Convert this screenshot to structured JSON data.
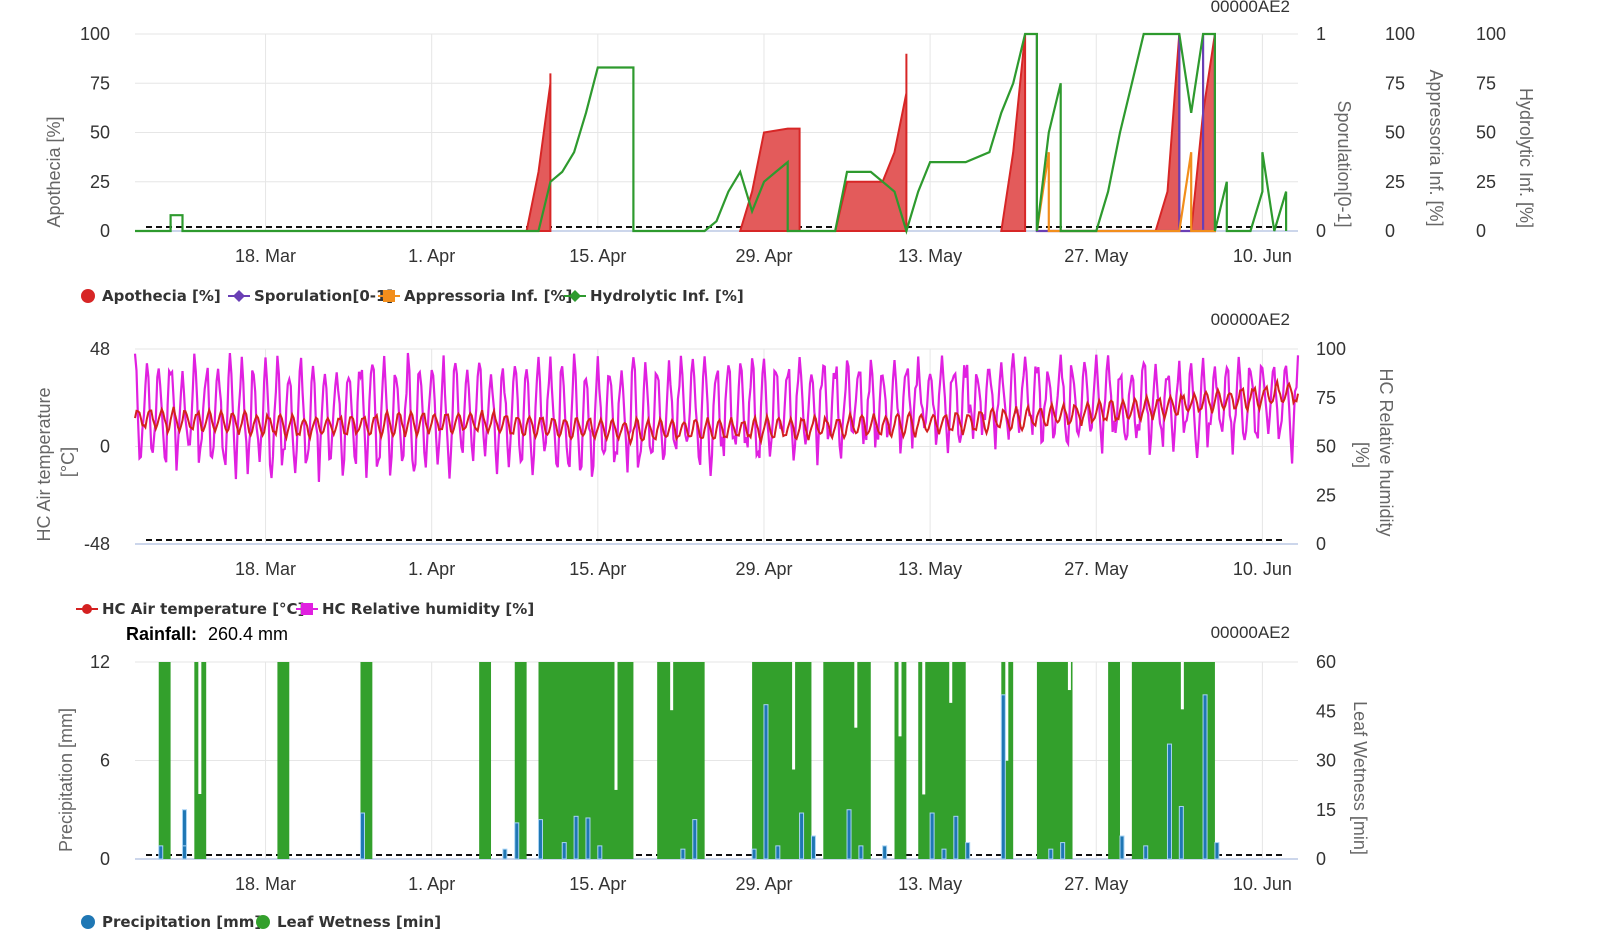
{
  "colors": {
    "apothecia": "#d72626",
    "apothecia_fill": "#e35b5b",
    "sporulation": "#6a3fb5",
    "appressoria": "#f28e1c",
    "hydrolytic": "#2e9a2e",
    "temperature": "#d42020",
    "humidity": "#e020e0",
    "precipitation": "#1f77b4",
    "leaf_wetness": "#33a02c",
    "gridline": "#e6e6e6",
    "axis_line": "#ccd6eb"
  },
  "x_axis": {
    "start": "2024-03-07",
    "end": "2024-06-13",
    "ticks": [
      {
        "date": "2024-03-18",
        "label": "18. Mar"
      },
      {
        "date": "2024-04-01",
        "label": "1. Apr"
      },
      {
        "date": "2024-04-15",
        "label": "15. Apr"
      },
      {
        "date": "2024-04-29",
        "label": "29. Apr"
      },
      {
        "date": "2024-05-13",
        "label": "13. May"
      },
      {
        "date": "2024-05-27",
        "label": "27. May"
      },
      {
        "date": "2024-06-10",
        "label": "10. Jun"
      }
    ]
  },
  "chart_data": [
    {
      "type": "area",
      "station_id": "00000AE2",
      "y_axes": [
        {
          "title": "Apothecia [%]",
          "ticks": [
            "0",
            "25",
            "50",
            "75",
            "100"
          ],
          "range": [
            0,
            100
          ]
        },
        {
          "title": "Sporulation[0-1]",
          "ticks": [
            "0",
            "1"
          ],
          "range": [
            0,
            1
          ]
        },
        {
          "title": "Appressoria Inf. [%]",
          "ticks": [
            "0",
            "25",
            "50",
            "75",
            "100"
          ],
          "range": [
            0,
            100
          ]
        },
        {
          "title": "Hydrolytic Inf. [%]",
          "ticks": [
            "0",
            "25",
            "50",
            "75",
            "100"
          ],
          "range": [
            0,
            100
          ]
        }
      ],
      "legend": [
        {
          "label": "Apothecia [%]",
          "marker": "circle",
          "color_key": "apothecia"
        },
        {
          "label": "Sporulation[0-1]",
          "marker": "diamond-line",
          "color_key": "sporulation"
        },
        {
          "label": "Appressoria Inf. [%]",
          "marker": "square-line",
          "color_key": "appressoria"
        },
        {
          "label": "Hydrolytic Inf. [%]",
          "marker": "triangle-line",
          "color_key": "hydrolytic"
        }
      ],
      "series": [
        {
          "name": "Apothecia [%]",
          "axis": 0,
          "style": "area",
          "color_key": "apothecia",
          "points": [
            [
              "2024-04-09",
              0
            ],
            [
              "2024-04-10",
              30
            ],
            [
              "2024-04-11",
              75
            ],
            [
              "2024-04-11",
              80
            ],
            [
              "2024-04-11",
              0
            ],
            [
              "2024-04-27",
              0
            ],
            [
              "2024-04-28",
              20
            ],
            [
              "2024-04-29",
              50
            ],
            [
              "2024-05-01",
              52
            ],
            [
              "2024-05-02",
              52
            ],
            [
              "2024-05-02",
              0
            ],
            [
              "2024-05-05",
              0
            ],
            [
              "2024-05-06",
              25
            ],
            [
              "2024-05-09",
              25
            ],
            [
              "2024-05-10",
              40
            ],
            [
              "2024-05-11",
              70
            ],
            [
              "2024-05-11",
              90
            ],
            [
              "2024-05-11",
              0
            ],
            [
              "2024-05-19",
              0
            ],
            [
              "2024-05-20",
              40
            ],
            [
              "2024-05-21",
              100
            ],
            [
              "2024-05-21",
              0
            ],
            [
              "2024-06-01",
              0
            ],
            [
              "2024-06-02",
              20
            ],
            [
              "2024-06-03",
              100
            ],
            [
              "2024-06-03",
              0
            ],
            [
              "2024-06-04",
              0
            ],
            [
              "2024-06-05",
              60
            ],
            [
              "2024-06-06",
              100
            ],
            [
              "2024-06-06",
              0
            ]
          ]
        },
        {
          "name": "Sporulation[0-1]",
          "axis": 1,
          "style": "line",
          "color_key": "sporulation",
          "points": [
            [
              "2024-05-22",
              0
            ],
            [
              "2024-05-22",
              1
            ],
            [
              "2024-05-22",
              0
            ],
            [
              "2024-06-03",
              0
            ],
            [
              "2024-06-03",
              1
            ],
            [
              "2024-06-03",
              0
            ],
            [
              "2024-06-05",
              0
            ],
            [
              "2024-06-05",
              1
            ],
            [
              "2024-06-05",
              0
            ],
            [
              "2024-06-06",
              0
            ],
            [
              "2024-06-06",
              1
            ],
            [
              "2024-06-06",
              0
            ]
          ]
        },
        {
          "name": "Appressoria Inf. [%]",
          "axis": 2,
          "style": "line",
          "color_key": "appressoria",
          "points": [
            [
              "2024-05-22",
              0
            ],
            [
              "2024-05-23",
              40
            ],
            [
              "2024-05-23",
              0
            ],
            [
              "2024-06-03",
              0
            ],
            [
              "2024-06-04",
              40
            ],
            [
              "2024-06-04",
              0
            ],
            [
              "2024-06-06",
              0
            ],
            [
              "2024-06-06",
              20
            ],
            [
              "2024-06-06",
              0
            ]
          ]
        },
        {
          "name": "Hydrolytic Inf. [%]",
          "axis": 3,
          "style": "line",
          "color_key": "hydrolytic",
          "points": [
            [
              "2024-03-07",
              0
            ],
            [
              "2024-03-10",
              0
            ],
            [
              "2024-03-10",
              8
            ],
            [
              "2024-03-11",
              8
            ],
            [
              "2024-03-11",
              0
            ],
            [
              "2024-04-10",
              0
            ],
            [
              "2024-04-11",
              25
            ],
            [
              "2024-04-12",
              30
            ],
            [
              "2024-04-13",
              40
            ],
            [
              "2024-04-14",
              60
            ],
            [
              "2024-04-15",
              83
            ],
            [
              "2024-04-18",
              83
            ],
            [
              "2024-04-18",
              0
            ],
            [
              "2024-04-24",
              0
            ],
            [
              "2024-04-25",
              5
            ],
            [
              "2024-04-26",
              20
            ],
            [
              "2024-04-27",
              30
            ],
            [
              "2024-04-28",
              10
            ],
            [
              "2024-04-29",
              25
            ],
            [
              "2024-04-30",
              30
            ],
            [
              "2024-05-01",
              35
            ],
            [
              "2024-05-01",
              0
            ],
            [
              "2024-05-05",
              0
            ],
            [
              "2024-05-06",
              30
            ],
            [
              "2024-05-08",
              30
            ],
            [
              "2024-05-10",
              20
            ],
            [
              "2024-05-11",
              0
            ],
            [
              "2024-05-12",
              20
            ],
            [
              "2024-05-13",
              35
            ],
            [
              "2024-05-16",
              35
            ],
            [
              "2024-05-18",
              40
            ],
            [
              "2024-05-19",
              60
            ],
            [
              "2024-05-20",
              75
            ],
            [
              "2024-05-21",
              100
            ],
            [
              "2024-05-22",
              100
            ],
            [
              "2024-05-22",
              0
            ],
            [
              "2024-05-23",
              50
            ],
            [
              "2024-05-24",
              75
            ],
            [
              "2024-05-24",
              0
            ],
            [
              "2024-05-27",
              0
            ],
            [
              "2024-05-28",
              20
            ],
            [
              "2024-05-29",
              50
            ],
            [
              "2024-05-30",
              75
            ],
            [
              "2024-05-31",
              100
            ],
            [
              "2024-06-03",
              100
            ],
            [
              "2024-06-04",
              60
            ],
            [
              "2024-06-05",
              100
            ],
            [
              "2024-06-06",
              100
            ],
            [
              "2024-06-06",
              0
            ],
            [
              "2024-06-07",
              25
            ],
            [
              "2024-06-07",
              0
            ],
            [
              "2024-06-09",
              0
            ],
            [
              "2024-06-10",
              20
            ],
            [
              "2024-06-10",
              40
            ],
            [
              "2024-06-11",
              0
            ],
            [
              "2024-06-12",
              20
            ],
            [
              "2024-06-12",
              0
            ]
          ]
        }
      ]
    },
    {
      "type": "line",
      "station_id": "00000AE2",
      "y_axes": [
        {
          "title": "HC Air temperature [°C]",
          "ticks": [
            "-48",
            "0",
            "48"
          ],
          "range": [
            -48,
            48
          ]
        },
        {
          "title": "HC Relative humidity [%]",
          "ticks": [
            "0",
            "25",
            "50",
            "75",
            "100"
          ],
          "range": [
            0,
            100
          ]
        }
      ],
      "legend": [
        {
          "label": "HC Air temperature [°C]",
          "marker": "circle-line",
          "color_key": "temperature"
        },
        {
          "label": "HC Relative humidity [%]",
          "marker": "square-line",
          "color_key": "humidity"
        }
      ],
      "series": [
        {
          "name": "HC Air temperature [°C]",
          "axis": 0,
          "color_key": "temperature",
          "baseline": [
            [
              "2024-03-07",
              14
            ],
            [
              "2024-03-21",
              10
            ],
            [
              "2024-04-04",
              12
            ],
            [
              "2024-04-18",
              8
            ],
            [
              "2024-05-02",
              9
            ],
            [
              "2024-05-16",
              12
            ],
            [
              "2024-05-30",
              18
            ],
            [
              "2024-06-12",
              26
            ]
          ],
          "daily_swing": 6
        },
        {
          "name": "HC Relative humidity [%]",
          "axis": 1,
          "color_key": "humidity",
          "daily_min": [
            [
              "2024-03-07",
              45
            ],
            [
              "2024-03-21",
              40
            ],
            [
              "2024-04-04",
              45
            ],
            [
              "2024-04-18",
              40
            ],
            [
              "2024-05-02",
              50
            ],
            [
              "2024-05-16",
              58
            ],
            [
              "2024-05-30",
              52
            ],
            [
              "2024-06-12",
              52
            ]
          ],
          "daily_max": 98
        }
      ]
    },
    {
      "type": "bar",
      "station_id": "00000AE2",
      "title": "Rainfall:",
      "subtitle": "260.4 mm",
      "y_axes": [
        {
          "title": "Precipitation [mm]",
          "ticks": [
            "0",
            "6",
            "12"
          ],
          "range": [
            0,
            12
          ]
        },
        {
          "title": "Leaf Wetness [min]",
          "ticks": [
            "0",
            "15",
            "30",
            "45",
            "60"
          ],
          "range": [
            0,
            60
          ]
        }
      ],
      "legend": [
        {
          "label": "Precipitation [mm]",
          "marker": "circle",
          "color_key": "precipitation"
        },
        {
          "label": "Leaf Wetness [min]",
          "marker": "circle",
          "color_key": "leaf_wetness"
        }
      ],
      "series": [
        {
          "name": "Leaf Wetness [min]",
          "axis": 1,
          "color_key": "leaf_wetness",
          "wet_periods": [
            [
              "2024-03-09",
              "2024-03-10"
            ],
            [
              "2024-03-12",
              "2024-03-13"
            ],
            [
              "2024-03-19",
              "2024-03-20"
            ],
            [
              "2024-03-26",
              "2024-03-27"
            ],
            [
              "2024-04-05",
              "2024-04-06"
            ],
            [
              "2024-04-08",
              "2024-04-09"
            ],
            [
              "2024-04-10",
              "2024-04-18"
            ],
            [
              "2024-04-20",
              "2024-04-24"
            ],
            [
              "2024-04-28",
              "2024-05-03"
            ],
            [
              "2024-05-04",
              "2024-05-08"
            ],
            [
              "2024-05-10",
              "2024-05-11"
            ],
            [
              "2024-05-12",
              "2024-05-16"
            ],
            [
              "2024-05-19",
              "2024-05-20"
            ],
            [
              "2024-05-22",
              "2024-05-25"
            ],
            [
              "2024-05-28",
              "2024-05-29"
            ],
            [
              "2024-05-30",
              "2024-06-06"
            ]
          ]
        },
        {
          "name": "Precipitation [mm]",
          "axis": 0,
          "color_key": "precipitation",
          "points": [
            [
              "2024-03-09",
              0.8
            ],
            [
              "2024-03-11",
              3.0
            ],
            [
              "2024-03-11",
              0.8
            ],
            [
              "2024-03-26",
              2.8
            ],
            [
              "2024-04-07",
              0.6
            ],
            [
              "2024-04-08",
              2.2
            ],
            [
              "2024-04-10",
              2.4
            ],
            [
              "2024-04-12",
              1.0
            ],
            [
              "2024-04-13",
              2.6
            ],
            [
              "2024-04-14",
              2.5
            ],
            [
              "2024-04-15",
              0.8
            ],
            [
              "2024-04-22",
              0.6
            ],
            [
              "2024-04-23",
              2.4
            ],
            [
              "2024-04-28",
              0.6
            ],
            [
              "2024-04-29",
              9.4
            ],
            [
              "2024-04-30",
              0.8
            ],
            [
              "2024-05-02",
              2.8
            ],
            [
              "2024-05-03",
              1.4
            ],
            [
              "2024-05-06",
              3.0
            ],
            [
              "2024-05-07",
              0.8
            ],
            [
              "2024-05-09",
              0.8
            ],
            [
              "2024-05-13",
              2.8
            ],
            [
              "2024-05-14",
              0.6
            ],
            [
              "2024-05-15",
              2.6
            ],
            [
              "2024-05-16",
              1.0
            ],
            [
              "2024-05-19",
              10.0
            ],
            [
              "2024-05-23",
              0.6
            ],
            [
              "2024-05-24",
              1.0
            ],
            [
              "2024-05-29",
              1.4
            ],
            [
              "2024-05-31",
              0.8
            ],
            [
              "2024-06-02",
              7.0
            ],
            [
              "2024-06-03",
              3.2
            ],
            [
              "2024-06-05",
              10.0
            ],
            [
              "2024-06-06",
              1.0
            ]
          ]
        }
      ]
    }
  ]
}
